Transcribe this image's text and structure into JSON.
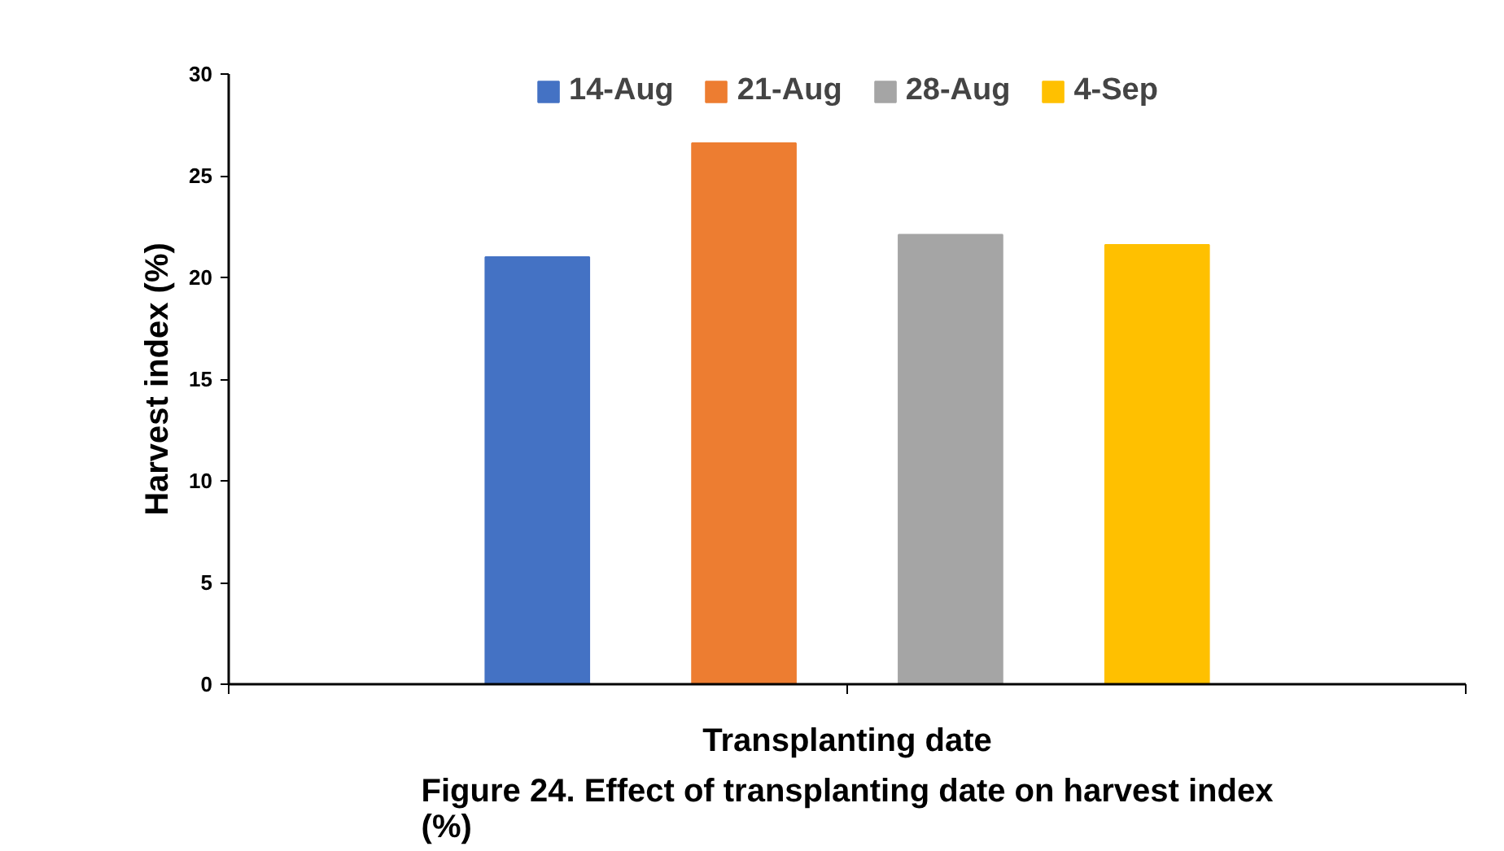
{
  "chart_data": {
    "type": "bar",
    "title": "Figure 24. Effect of transplanting date on harvest index (%)",
    "xlabel": "Transplanting date",
    "ylabel": "Harvest index (%)",
    "categories": [
      null
    ],
    "series": [
      {
        "name": "14-Aug",
        "color": "#4472c4",
        "values": [
          21.0
        ]
      },
      {
        "name": "21-Aug",
        "color": "#ed7d31",
        "values": [
          26.6
        ]
      },
      {
        "name": "28-Aug",
        "color": "#a5a5a5",
        "values": [
          22.1
        ]
      },
      {
        "name": "4-Sep",
        "color": "#ffc000",
        "values": [
          21.6
        ]
      }
    ],
    "ylim": [
      0,
      30
    ],
    "yticks": [
      0,
      5,
      10,
      15,
      20,
      25,
      30
    ],
    "grid": false,
    "legend": "top"
  }
}
